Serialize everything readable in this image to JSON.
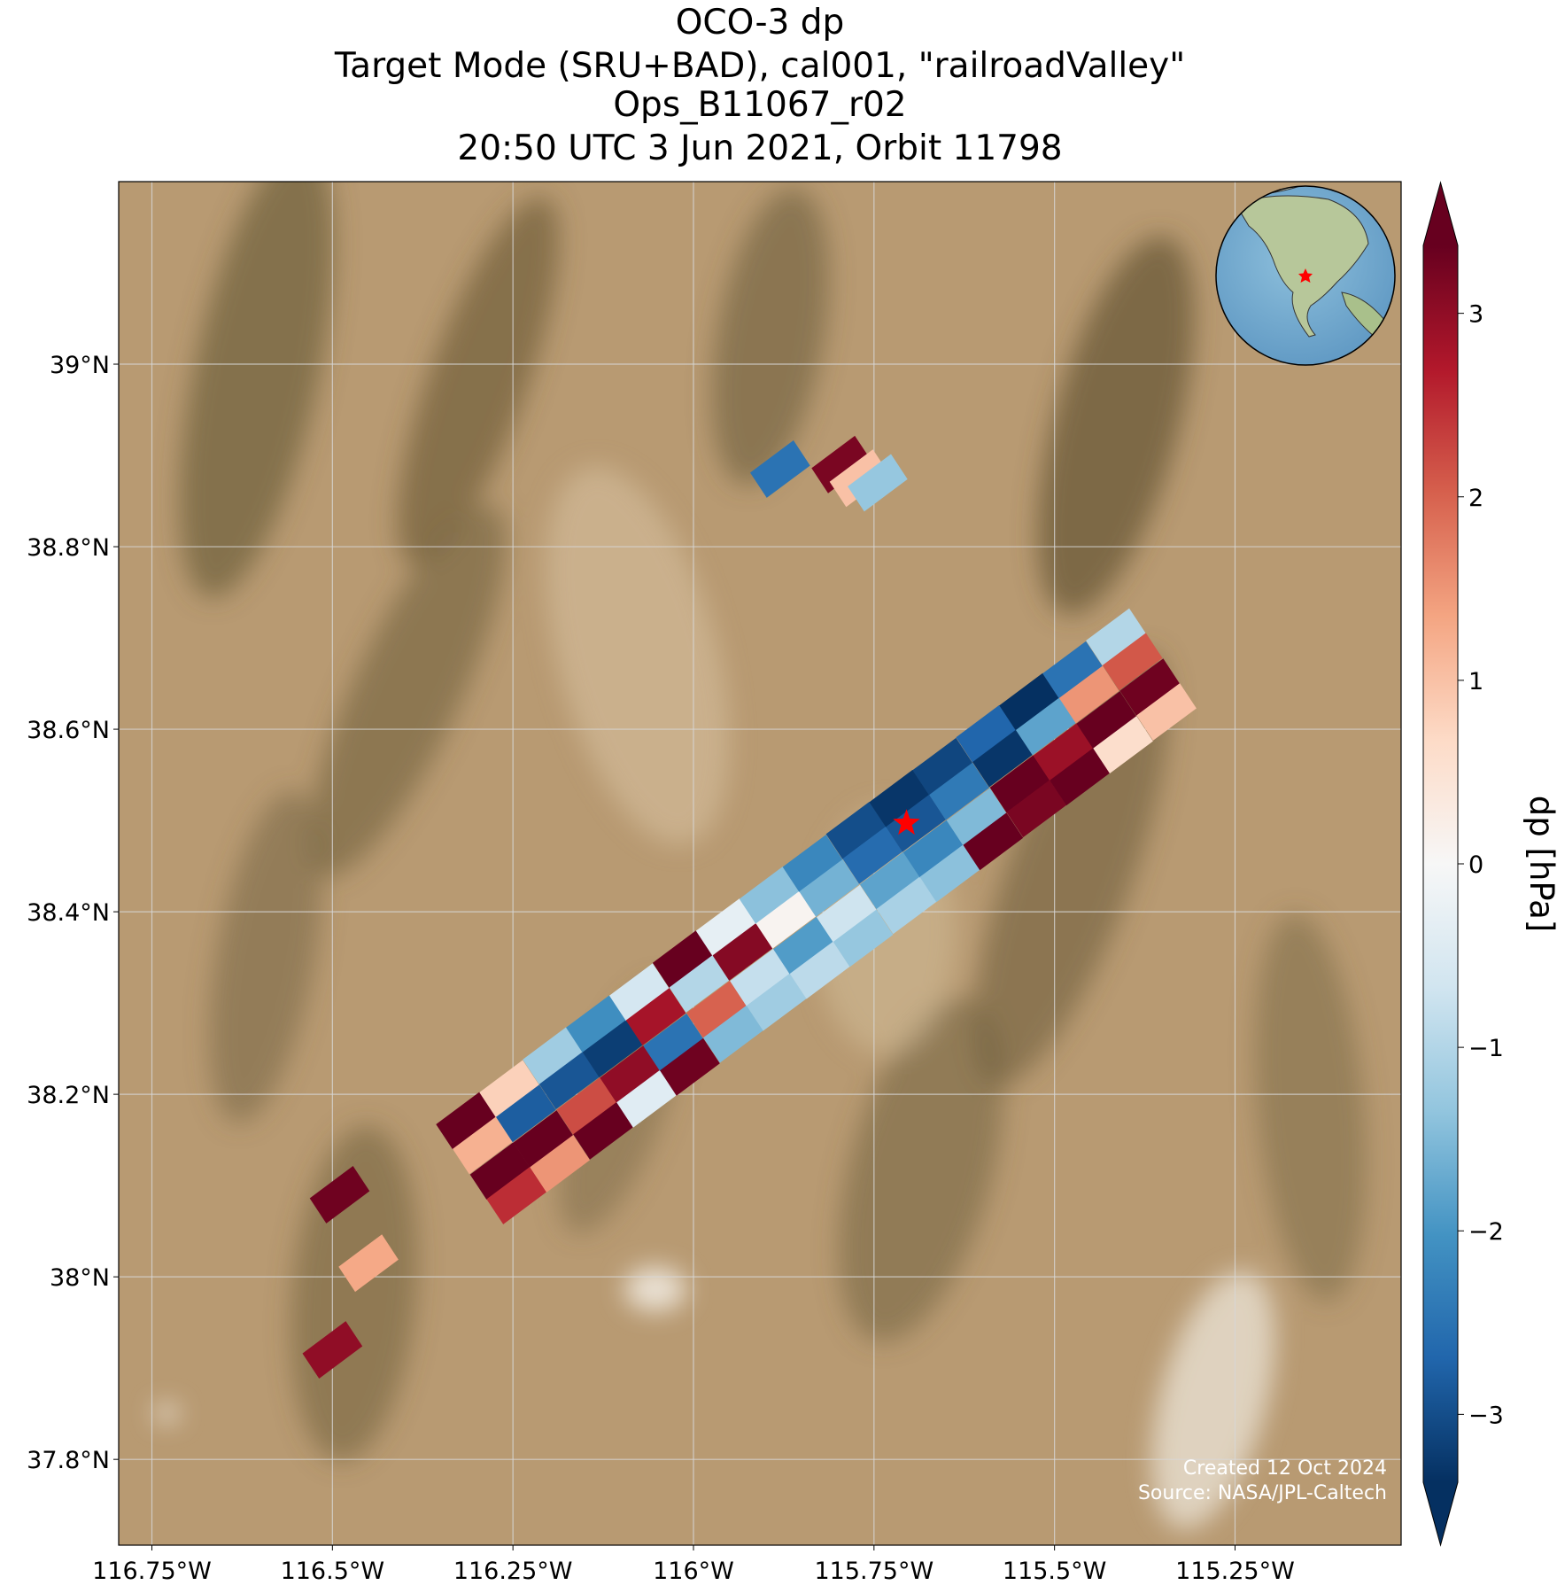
{
  "chart_data": {
    "type": "map",
    "title": [
      "OCO-3 dp",
      "Target Mode (SRU+BAD), cal001, \"railroadValley\"",
      "Ops_B11067_r02",
      "20:50 UTC 3 Jun 2021, Orbit 11798"
    ],
    "xlim": [
      -116.796,
      -115.02
    ],
    "ylim": [
      37.706,
      39.2
    ],
    "xticks": [
      {
        "value": -116.75,
        "label": "116.75°W"
      },
      {
        "value": -116.5,
        "label": "116.5°W"
      },
      {
        "value": -116.25,
        "label": "116.25°W"
      },
      {
        "value": -116,
        "label": "116°W"
      },
      {
        "value": -115.75,
        "label": "115.75°W"
      },
      {
        "value": -115.5,
        "label": "115.5°W"
      },
      {
        "value": -115.25,
        "label": "115.25°W"
      }
    ],
    "yticks": [
      {
        "value": 37.8,
        "label": "37.8°N"
      },
      {
        "value": 38,
        "label": "38°N"
      },
      {
        "value": 38.2,
        "label": "38.2°N"
      },
      {
        "value": 38.4,
        "label": "38.4°N"
      },
      {
        "value": 38.6,
        "label": "38.6°N"
      },
      {
        "value": 38.8,
        "label": "38.8°N"
      },
      {
        "value": 39,
        "label": "39°N"
      }
    ],
    "grid": true,
    "colorbar_label": "dp [hPa]",
    "clim": [
      -3.37,
      3.37
    ],
    "cticks": [
      {
        "value": -3,
        "label": "−3"
      },
      {
        "value": -2,
        "label": "−2"
      },
      {
        "value": -1,
        "label": "−1"
      },
      0,
      1,
      2,
      3
    ],
    "colormap": [
      "#053061",
      "#2166ac",
      "#4393c3",
      "#92c5de",
      "#d1e5f0",
      "#f7f7f7",
      "#fddbc7",
      "#f4a582",
      "#d6604d",
      "#b2182b",
      "#67001f"
    ],
    "target": {
      "lon": -115.705,
      "lat": 38.497,
      "color": "#ff0000"
    },
    "footprints": {
      "lon": [
        -116.315,
        -116.292,
        -116.268,
        -116.245,
        -116.255,
        -116.232,
        -116.208,
        -116.185,
        -116.195,
        -116.172,
        -116.148,
        -116.125,
        -116.135,
        -116.112,
        -116.088,
        -116.065,
        -116.075,
        -116.052,
        -116.028,
        -116.005,
        -116.015,
        -115.992,
        -115.968,
        -115.945,
        -115.955,
        -115.932,
        -115.908,
        -115.885,
        -115.895,
        -115.872,
        -115.848,
        -115.825,
        -115.835,
        -115.812,
        -115.788,
        -115.765,
        -115.775,
        -115.752,
        -115.728,
        -115.705,
        -115.715,
        -115.692,
        -115.668,
        -115.645,
        -115.655,
        -115.632,
        -115.608,
        -115.585,
        -115.595,
        -115.572,
        -115.548,
        -115.525,
        -115.535,
        -115.512,
        -115.488,
        -115.465,
        -115.475,
        -115.452,
        -115.428,
        -115.405,
        -115.415,
        -115.392,
        -115.368,
        -115.345,
        -115.88,
        -115.795,
        -115.77,
        -115.745,
        -116.49,
        -116.45,
        -116.5
      ],
      "lat": [
        38.171,
        38.144,
        38.116,
        38.089,
        38.206,
        38.179,
        38.151,
        38.124,
        38.242,
        38.215,
        38.187,
        38.16,
        38.277,
        38.25,
        38.222,
        38.195,
        38.312,
        38.285,
        38.257,
        38.23,
        38.348,
        38.321,
        38.293,
        38.266,
        38.383,
        38.356,
        38.328,
        38.301,
        38.418,
        38.391,
        38.363,
        38.336,
        38.453,
        38.426,
        38.398,
        38.371,
        38.489,
        38.462,
        38.434,
        38.407,
        38.524,
        38.497,
        38.469,
        38.442,
        38.559,
        38.532,
        38.504,
        38.477,
        38.595,
        38.568,
        38.54,
        38.513,
        38.63,
        38.603,
        38.575,
        38.548,
        38.665,
        38.638,
        38.61,
        38.583,
        38.701,
        38.674,
        38.646,
        38.619,
        38.885,
        38.89,
        38.875,
        38.87,
        38.09,
        38.015,
        37.92
      ],
      "dp": [
        3.4,
        1.2,
        3.4,
        2.5,
        0.8,
        -2.8,
        3.4,
        1.5,
        -1.2,
        -2.9,
        2.2,
        3.4,
        -2.1,
        -3.2,
        3.0,
        -0.4,
        -0.6,
        2.8,
        -2.5,
        3.3,
        3.4,
        -1.0,
        2.0,
        -1.5,
        -0.3,
        3.1,
        -0.8,
        -1.2,
        -1.4,
        0.1,
        -1.9,
        -0.9,
        -2.2,
        -1.6,
        -0.7,
        -1.3,
        -3.0,
        -2.6,
        -1.8,
        -1.1,
        -3.3,
        -2.9,
        -2.2,
        -1.4,
        -3.1,
        -2.4,
        -1.5,
        3.4,
        -2.7,
        -3.3,
        3.4,
        3.2,
        -3.4,
        -1.8,
        2.9,
        3.4,
        -2.5,
        1.5,
        3.4,
        0.6,
        -1.0,
        2.1,
        3.3,
        1.0,
        -2.5,
        3.2,
        1.0,
        -1.3,
        3.3,
        1.3,
        3.0
      ]
    },
    "credits": [
      "Created 12 Oct 2024",
      "Source: NASA/JPL-Caltech"
    ]
  }
}
